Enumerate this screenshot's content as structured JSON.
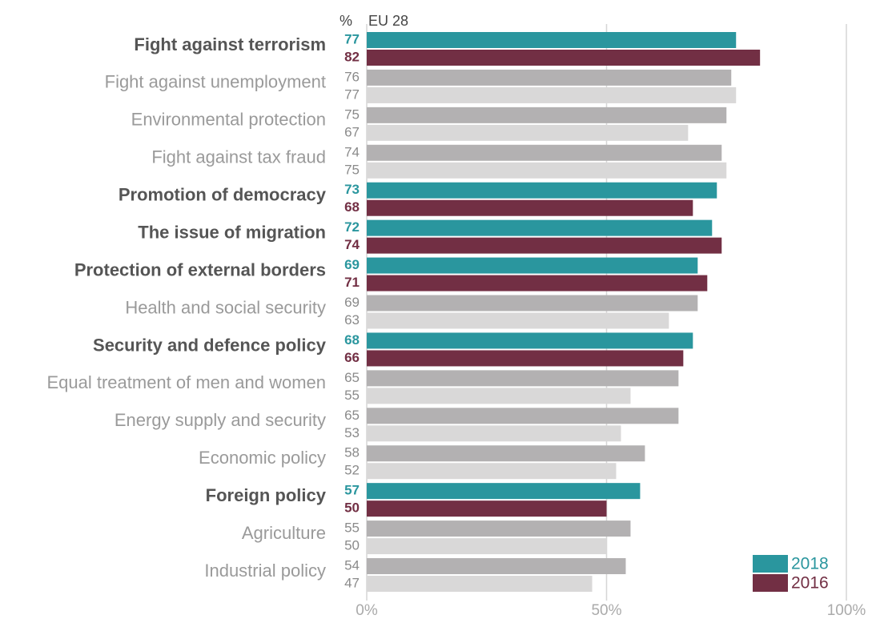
{
  "chart_data": {
    "type": "hbar",
    "unit_label": "%",
    "subtitle": "EU 28",
    "categories": [
      "Fight against terrorism",
      "Fight against unemployment",
      "Environmental protection",
      "Fight against tax fraud",
      "Promotion of democracy",
      "The issue of migration",
      "Protection of external borders",
      "Health and social security",
      "Security and defence policy",
      "Equal treatment of men and women",
      "Energy supply and security",
      "Economic policy",
      "Foreign policy",
      "Agriculture",
      "Industrial policy"
    ],
    "highlight": [
      true,
      false,
      false,
      false,
      true,
      true,
      true,
      false,
      true,
      false,
      false,
      false,
      true,
      false,
      false
    ],
    "series": [
      {
        "name": "2018",
        "color": "#2a969e",
        "muted_color": "#b3b1b2",
        "values": [
          77,
          76,
          75,
          74,
          73,
          72,
          69,
          69,
          68,
          65,
          65,
          58,
          57,
          55,
          54
        ]
      },
      {
        "name": "2016",
        "color": "#722f44",
        "muted_color": "#d9d8d8",
        "values": [
          82,
          77,
          67,
          75,
          68,
          74,
          71,
          63,
          66,
          55,
          53,
          52,
          50,
          50,
          47
        ]
      }
    ],
    "xlim": [
      0,
      100
    ],
    "xticks": [
      {
        "value": 0,
        "label": "0%"
      },
      {
        "value": 50,
        "label": "50%"
      },
      {
        "value": 100,
        "label": "100%"
      }
    ],
    "grid": true,
    "legend": "bottom-right"
  }
}
